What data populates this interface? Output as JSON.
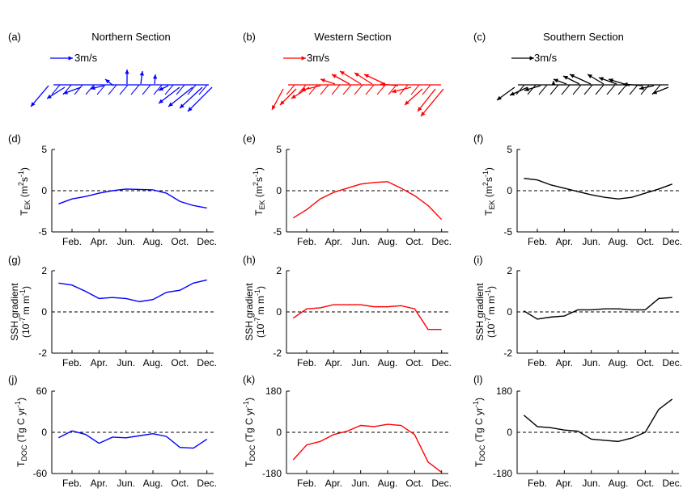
{
  "colors": {
    "northern": "#0000ff",
    "western": "#ff0000",
    "southern": "#000000"
  },
  "panels": {
    "vectors": [
      {
        "letter": "(a)",
        "title": "Northern Section",
        "scale_label": "3m/s",
        "color": "#0000ff"
      },
      {
        "letter": "(b)",
        "title": "Western Section",
        "scale_label": "3m/s",
        "color": "#ff0000"
      },
      {
        "letter": "(c)",
        "title": "Southern Section",
        "scale_label": "3m/s",
        "color": "#000000"
      }
    ],
    "tek_letters": [
      "(d)",
      "(e)",
      "(f)"
    ],
    "ssh_letters": [
      "(g)",
      "(h)",
      "(i)"
    ],
    "tdoc_letters": [
      "(j)",
      "(k)",
      "(l)"
    ]
  },
  "axis_text": {
    "tek": {
      "main": "T",
      "sub": "EK",
      "unit": " (m",
      "sup1": "2",
      "mid": "s",
      "sup2": "-1",
      "close": ")"
    },
    "ssh": {
      "line1": "SSH gradient",
      "line2a": "(10",
      "sup1": "-7",
      "line2b": "m m",
      "sup2": "-1",
      "close": ")"
    },
    "tdoc": {
      "main": "T",
      "sub": "DOC",
      "unit": " (Tg C yr",
      "sup": "-1",
      "close": ")"
    }
  },
  "chart_data": [
    {
      "type": "line",
      "panel": "(d)",
      "x": [
        1,
        2,
        3,
        4,
        5,
        6,
        7,
        8,
        9,
        10,
        11,
        12
      ],
      "xticks": [
        2,
        4,
        6,
        8,
        10,
        12
      ],
      "xtick_labels": [
        "Feb.",
        "Apr.",
        "Jun.",
        "Aug.",
        "Oct.",
        "Dec."
      ],
      "ylim": [
        -5,
        5
      ],
      "yticks": [
        -5,
        0,
        5
      ],
      "ytick_labels": [
        "-5",
        "0",
        "5"
      ],
      "series": [
        {
          "color": "#0000ff",
          "values": [
            -1.6,
            -1.0,
            -0.7,
            -0.3,
            0.0,
            0.2,
            0.15,
            0.1,
            -0.3,
            -1.3,
            -1.8,
            -2.1
          ]
        }
      ]
    },
    {
      "type": "line",
      "panel": "(e)",
      "x": [
        1,
        2,
        3,
        4,
        5,
        6,
        7,
        8,
        9,
        10,
        11,
        12
      ],
      "xticks": [
        2,
        4,
        6,
        8,
        10,
        12
      ],
      "xtick_labels": [
        "Feb.",
        "Apr.",
        "Jun.",
        "Aug.",
        "Oct.",
        "Dec."
      ],
      "ylim": [
        -5,
        5
      ],
      "yticks": [
        -5,
        0,
        5
      ],
      "ytick_labels": [
        "-5",
        "0",
        "5"
      ],
      "series": [
        {
          "color": "#ff0000",
          "values": [
            -3.3,
            -2.3,
            -1.0,
            -0.2,
            0.3,
            0.8,
            1.0,
            1.1,
            0.3,
            -0.6,
            -1.8,
            -3.5
          ]
        }
      ]
    },
    {
      "type": "line",
      "panel": "(f)",
      "x": [
        1,
        2,
        3,
        4,
        5,
        6,
        7,
        8,
        9,
        10,
        11,
        12
      ],
      "xticks": [
        2,
        4,
        6,
        8,
        10,
        12
      ],
      "xtick_labels": [
        "Feb.",
        "Apr.",
        "Jun.",
        "Aug.",
        "Oct.",
        "Dec."
      ],
      "ylim": [
        -5,
        5
      ],
      "yticks": [
        -5,
        0,
        5
      ],
      "ytick_labels": [
        "-5",
        "0",
        "5"
      ],
      "series": [
        {
          "color": "#000000",
          "values": [
            1.5,
            1.3,
            0.7,
            0.3,
            -0.1,
            -0.5,
            -0.8,
            -1.0,
            -0.8,
            -0.3,
            0.2,
            0.8
          ]
        }
      ]
    },
    {
      "type": "line",
      "panel": "(g)",
      "x": [
        1,
        2,
        3,
        4,
        5,
        6,
        7,
        8,
        9,
        10,
        11,
        12
      ],
      "xticks": [
        2,
        4,
        6,
        8,
        10,
        12
      ],
      "xtick_labels": [
        "Feb.",
        "Apr.",
        "Jun.",
        "Aug.",
        "Oct.",
        "Dec."
      ],
      "ylim": [
        -2,
        2
      ],
      "yticks": [
        -2,
        0,
        2
      ],
      "ytick_labels": [
        "-2",
        "0",
        "2"
      ],
      "series": [
        {
          "color": "#0000ff",
          "values": [
            1.4,
            1.3,
            1.0,
            0.65,
            0.7,
            0.65,
            0.5,
            0.6,
            0.95,
            1.05,
            1.4,
            1.55
          ]
        }
      ]
    },
    {
      "type": "line",
      "panel": "(h)",
      "x": [
        1,
        2,
        3,
        4,
        5,
        6,
        7,
        8,
        9,
        10,
        11,
        12
      ],
      "xticks": [
        2,
        4,
        6,
        8,
        10,
        12
      ],
      "xtick_labels": [
        "Feb.",
        "Apr.",
        "Jun.",
        "Aug.",
        "Oct.",
        "Dec."
      ],
      "ylim": [
        -2,
        2
      ],
      "yticks": [
        -2,
        0,
        2
      ],
      "ytick_labels": [
        "-2",
        "0",
        "2"
      ],
      "series": [
        {
          "color": "#ff0000",
          "values": [
            -0.3,
            0.15,
            0.2,
            0.35,
            0.35,
            0.35,
            0.25,
            0.25,
            0.3,
            0.15,
            -0.85,
            -0.85
          ]
        }
      ]
    },
    {
      "type": "line",
      "panel": "(i)",
      "x": [
        1,
        2,
        3,
        4,
        5,
        6,
        7,
        8,
        9,
        10,
        11,
        12
      ],
      "xticks": [
        2,
        4,
        6,
        8,
        10,
        12
      ],
      "xtick_labels": [
        "Feb.",
        "Apr.",
        "Jun.",
        "Aug.",
        "Oct.",
        "Dec."
      ],
      "ylim": [
        -2,
        2
      ],
      "yticks": [
        -2,
        0,
        2
      ],
      "ytick_labels": [
        "-2",
        "0",
        "2"
      ],
      "series": [
        {
          "color": "#000000",
          "values": [
            0.05,
            -0.35,
            -0.25,
            -0.2,
            0.1,
            0.1,
            0.15,
            0.15,
            0.1,
            0.1,
            0.65,
            0.7
          ]
        }
      ]
    },
    {
      "type": "line",
      "panel": "(j)",
      "x": [
        1,
        2,
        3,
        4,
        5,
        6,
        7,
        8,
        9,
        10,
        11,
        12
      ],
      "xticks": [
        2,
        4,
        6,
        8,
        10,
        12
      ],
      "xtick_labels": [
        "Feb.",
        "Apr.",
        "Jun.",
        "Aug.",
        "Oct.",
        "Dec."
      ],
      "ylim": [
        -60,
        60
      ],
      "yticks": [
        -60,
        0,
        60
      ],
      "ytick_labels": [
        "-60",
        "0",
        "60"
      ],
      "series": [
        {
          "color": "#0000ff",
          "values": [
            -8,
            2,
            -3,
            -16,
            -7,
            -8,
            -5,
            -2,
            -6,
            -22,
            -23,
            -10
          ]
        }
      ]
    },
    {
      "type": "line",
      "panel": "(k)",
      "x": [
        1,
        2,
        3,
        4,
        5,
        6,
        7,
        8,
        9,
        10,
        11,
        12
      ],
      "xticks": [
        2,
        4,
        6,
        8,
        10,
        12
      ],
      "xtick_labels": [
        "Feb.",
        "Apr.",
        "Jun.",
        "Aug.",
        "Oct.",
        "Dec."
      ],
      "ylim": [
        -180,
        180
      ],
      "yticks": [
        -180,
        0,
        180
      ],
      "ytick_labels": [
        "-180",
        "0",
        "180"
      ],
      "series": [
        {
          "color": "#ff0000",
          "values": [
            -120,
            -55,
            -40,
            -10,
            5,
            30,
            25,
            35,
            30,
            -10,
            -130,
            -175
          ]
        }
      ]
    },
    {
      "type": "line",
      "panel": "(l)",
      "x": [
        1,
        2,
        3,
        4,
        5,
        6,
        7,
        8,
        9,
        10,
        11,
        12
      ],
      "xticks": [
        2,
        4,
        6,
        8,
        10,
        12
      ],
      "xtick_labels": [
        "Feb.",
        "Apr.",
        "Jun.",
        "Aug.",
        "Oct.",
        "Dec."
      ],
      "ylim": [
        -180,
        180
      ],
      "yticks": [
        -180,
        0,
        180
      ],
      "ytick_labels": [
        "-180",
        "0",
        "180"
      ],
      "series": [
        {
          "color": "#000000",
          "values": [
            75,
            25,
            20,
            10,
            5,
            -30,
            -35,
            -40,
            -25,
            0,
            100,
            145
          ]
        }
      ]
    }
  ]
}
